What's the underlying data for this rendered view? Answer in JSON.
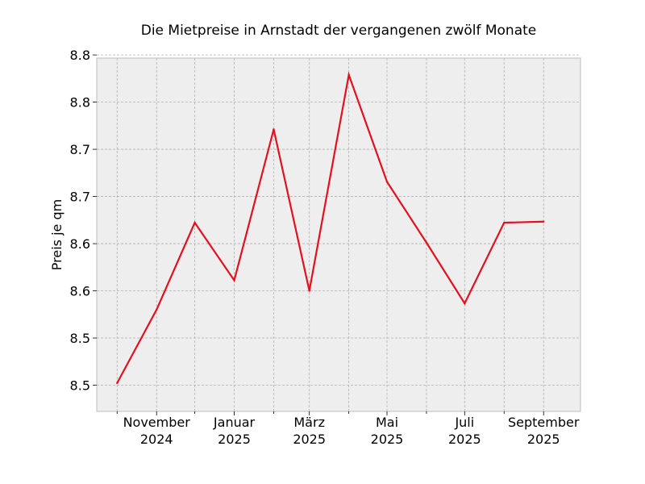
{
  "chart_data": {
    "type": "line",
    "title": "Die Mietpreise in Arnstadt der vergangenen zwölf Monate",
    "xlabel": "",
    "ylabel": "Preis je qm",
    "x": [
      "2024-10",
      "2024-11",
      "2024-12",
      "2025-01",
      "2025-02",
      "2025-03",
      "2025-04",
      "2025-05",
      "2025-06",
      "2025-07",
      "2025-08",
      "2025-09"
    ],
    "series": [
      {
        "values": [
          8.477,
          8.547,
          8.63,
          8.575,
          8.719,
          8.565,
          8.771,
          8.669,
          8.611,
          8.553,
          8.63,
          8.631
        ]
      }
    ],
    "ylim": [
      8.45,
      8.787
    ],
    "xlim": [
      "2024-09-15",
      "2025-09-30"
    ],
    "yticks": [
      8.475,
      8.52,
      8.565,
      8.61,
      8.655,
      8.7,
      8.745,
      8.79
    ],
    "yticklabels": [
      "8.5",
      "8.5",
      "8.6",
      "8.6",
      "8.7",
      "8.7",
      "8.8",
      "8.8"
    ],
    "xticks_major": [
      {
        "date": "2024-11",
        "line1": "November",
        "line2": "2024"
      },
      {
        "date": "2025-01",
        "line1": "Januar",
        "line2": "2025"
      },
      {
        "date": "2025-03",
        "line1": "März",
        "line2": "2025"
      },
      {
        "date": "2025-05",
        "line1": "Mai",
        "line2": "2025"
      },
      {
        "date": "2025-07",
        "line1": "Juli",
        "line2": "2025"
      },
      {
        "date": "2025-09",
        "line1": "September",
        "line2": "2025"
      }
    ],
    "xticks_minor": [
      "2024-10",
      "2024-12",
      "2025-02",
      "2025-04",
      "2025-06",
      "2025-08"
    ],
    "line_color": "#e3101e",
    "background_color": "#eeeeee",
    "grid": true,
    "legend": false
  }
}
